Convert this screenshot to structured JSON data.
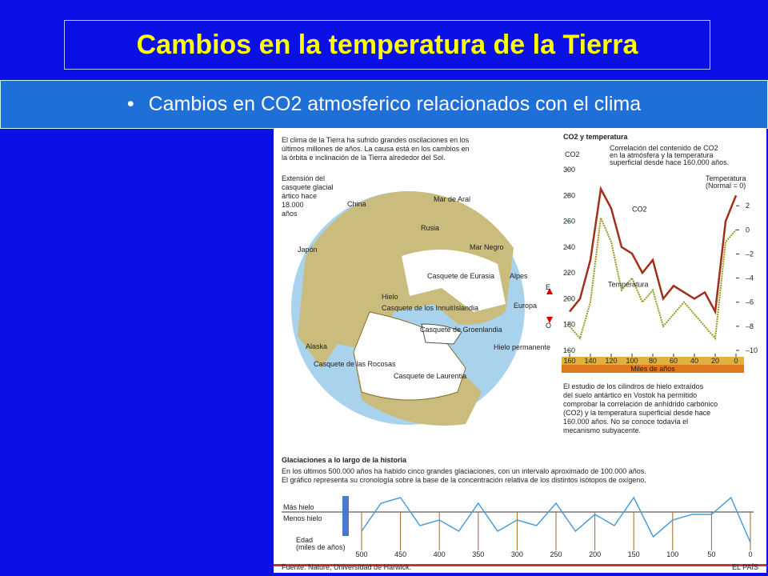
{
  "slide": {
    "title": "Cambios en la temperatura de la Tierra",
    "bullet": "Cambios en CO2 atmosferico relacionados con el clima"
  },
  "infographic": {
    "intro": [
      "El clima de la Tierra ha sufrido grandes oscilaciones en los",
      "últimos millones de años. La causa está en los cambios en",
      "la órbita e inclinación de la Tierra alrededor del Sol."
    ],
    "map_caption": [
      "Extensión del",
      "casquete glacial",
      "ártico hace",
      "18.000",
      "años"
    ],
    "map_labels": [
      {
        "text": "China"
      },
      {
        "text": "Mar de Aral"
      },
      {
        "text": "Rusia"
      },
      {
        "text": "Japón"
      },
      {
        "text": "Mar Negro"
      },
      {
        "text": "Casquete de Eurasia"
      },
      {
        "text": "Alpes"
      },
      {
        "text": "Hielo"
      },
      {
        "text": "Islandia"
      },
      {
        "text": "Europa"
      },
      {
        "text": "Casquete de los Innuit"
      },
      {
        "text": "Casquete de Groenlandia"
      },
      {
        "text": "Hielo permanente"
      },
      {
        "text": "Alaska"
      },
      {
        "text": "Casquete de las Rocosas"
      },
      {
        "text": "Casquete de Laurentia"
      },
      {
        "text": "E"
      },
      {
        "text": "O"
      }
    ],
    "co2_panel": {
      "heading": "CO2 y temperatura",
      "description": [
        "Correlación del contenido de CO2",
        "en la atmósfera y la temperatura",
        "superficial desde hace 160.000 años."
      ],
      "footer": [
        "El estudio de los cilindros de hielo extraídos",
        "del suelo antártico en Vostok ha permitido",
        "comprobar la correlación de anhídrido carbónico",
        "(CO2) y la temperatura superficial desde hace",
        "160.000 años. No se conoce todavía el",
        "mecanismo subyacente."
      ]
    },
    "chart_data": {
      "type": "line",
      "ylabel": "CO2",
      "y2label": [
        "Temperatura",
        "(Normal = 0)"
      ],
      "xlabel": "Miles de años",
      "x": [
        160,
        150,
        140,
        130,
        120,
        110,
        100,
        90,
        80,
        70,
        60,
        50,
        40,
        30,
        20,
        10,
        0
      ],
      "xlim": [
        160,
        0
      ],
      "xticks": [
        160,
        140,
        120,
        100,
        80,
        60,
        40,
        20,
        0
      ],
      "ylim": [
        160,
        300
      ],
      "yticks": [
        160,
        180,
        200,
        220,
        240,
        260,
        280,
        300
      ],
      "y2lim": [
        -10,
        5
      ],
      "y2ticks": [
        2,
        0,
        {
          "value": -2,
          "label": "–2"
        },
        {
          "value": -4,
          "label": "–4"
        },
        {
          "value": -6,
          "label": "–6"
        },
        {
          "value": -8,
          "label": "–8"
        },
        {
          "value": -10,
          "label": "–10"
        }
      ],
      "series": [
        {
          "name": "CO2",
          "color": "#a0301a",
          "values": [
            190,
            200,
            230,
            285,
            270,
            240,
            235,
            220,
            230,
            200,
            210,
            205,
            200,
            205,
            190,
            260,
            280
          ]
        },
        {
          "name": "Temperatura",
          "color": "#9a9a20",
          "axis": "y2",
          "values": [
            -8,
            -9,
            -6,
            1,
            -1,
            -5,
            -4,
            -6,
            -5,
            -8,
            -7,
            -6,
            -7,
            -8,
            -9,
            -1,
            0
          ]
        }
      ]
    },
    "glaciations": {
      "heading": "Glaciaciones a lo largo de la historia",
      "text": [
        "En los últimos 500.000 años ha habido cinco grandes glaciaciones, con un intervalo aproximado de 100.000 años.",
        "El gráfico representa su cronología sobre la base de la concentración relativa de los distintos isótopos de oxígeno."
      ],
      "more": "Más hielo",
      "less": "Menos hielo",
      "age": [
        "Edad",
        "(miles de años)"
      ],
      "chart": {
        "type": "area",
        "x": [
          500,
          475,
          450,
          425,
          400,
          375,
          350,
          325,
          300,
          275,
          250,
          225,
          200,
          175,
          150,
          125,
          100,
          75,
          50,
          25,
          0
        ],
        "xlim": [
          500,
          0
        ],
        "xticks": [
          500,
          450,
          400,
          350,
          300,
          250,
          200,
          150,
          100,
          50,
          0
        ],
        "ylim": [
          0,
          1
        ],
        "color": "#4a9ed8",
        "values": [
          0.3,
          0.8,
          0.9,
          0.4,
          0.5,
          0.3,
          0.8,
          0.3,
          0.5,
          0.4,
          0.8,
          0.3,
          0.6,
          0.4,
          0.9,
          0.2,
          0.5,
          0.6,
          0.6,
          0.9,
          0.1
        ]
      }
    },
    "source": "Fuente: Nature, Universidad de Harwick.",
    "credit": "EL PAÍS"
  }
}
